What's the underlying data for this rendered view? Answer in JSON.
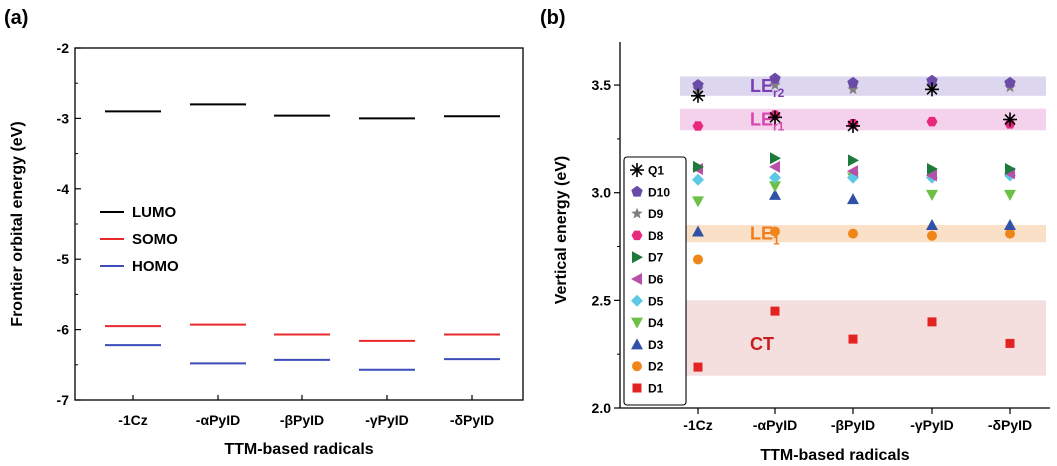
{
  "chart_data": [
    {
      "type": "line",
      "panel_label": "(a)",
      "xlabel": "TTM-based radicals",
      "ylabel": "Frontier orbital energy (eV)",
      "ylim": [
        -7,
        -2
      ],
      "y_ticks": [
        "-2",
        "-3",
        "-4",
        "-5",
        "-6",
        "-7"
      ],
      "categories": [
        "-1Cz",
        "-αPyID",
        "-βPyID",
        "-γPyID",
        "-δPyID"
      ],
      "series": [
        {
          "name": "LUMO",
          "color": "#000000",
          "values": [
            -2.9,
            -2.8,
            -2.96,
            -3.0,
            -2.97
          ]
        },
        {
          "name": "SOMO",
          "color": "#e8282b",
          "values": [
            -5.95,
            -5.93,
            -6.07,
            -6.16,
            -6.07
          ]
        },
        {
          "name": "HOMO",
          "color": "#3c4cb8",
          "values": [
            -6.22,
            -6.48,
            -6.43,
            -6.57,
            -6.42
          ]
        }
      ],
      "legend_position": "left"
    },
    {
      "type": "scatter",
      "panel_label": "(b)",
      "xlabel": "TTM-based radicals",
      "ylabel": "Vertical energy (eV)",
      "ylim": [
        2.0,
        3.7
      ],
      "y_ticks": [
        "2.0",
        "2.5",
        "3.0",
        "3.5"
      ],
      "categories": [
        "-1Cz",
        "-αPyID",
        "-βPyID",
        "-γPyID",
        "-δPyID"
      ],
      "bands": [
        {
          "label": "LE",
          "sub": "r2",
          "range": [
            3.45,
            3.54
          ],
          "fill": "#dcd6ee",
          "text_color": "#7b3fb3"
        },
        {
          "label": "LE",
          "sub": "r1",
          "range": [
            3.29,
            3.39
          ],
          "fill": "#f5d2ec",
          "text_color": "#d846b0"
        },
        {
          "label": "LE",
          "sub": "1",
          "range": [
            2.77,
            2.85
          ],
          "fill": "#fbe0c8",
          "text_color": "#f07c1a"
        },
        {
          "label": "CT",
          "sub": "",
          "range": [
            2.15,
            2.5
          ],
          "fill": "#f4dede",
          "text_color": "#c8201f"
        }
      ],
      "series": [
        {
          "name": "Q1",
          "marker": "asterisk",
          "color": "#000000",
          "values": [
            3.45,
            3.35,
            3.31,
            3.48,
            3.34
          ]
        },
        {
          "name": "D10",
          "marker": "pentagon",
          "color": "#6a4ca8",
          "values": [
            3.5,
            3.53,
            3.51,
            3.52,
            3.51
          ]
        },
        {
          "name": "D9",
          "marker": "star",
          "color": "#7f7f7f",
          "values": [
            3.48,
            3.5,
            3.48,
            3.5,
            3.49
          ]
        },
        {
          "name": "D8",
          "marker": "hexagon",
          "color": "#e8287c",
          "values": [
            3.31,
            3.36,
            3.32,
            3.33,
            3.32
          ]
        },
        {
          "name": "D7",
          "marker": "triangle-right",
          "color": "#1d7a3a",
          "values": [
            3.12,
            3.16,
            3.15,
            3.11,
            3.11
          ]
        },
        {
          "name": "D6",
          "marker": "triangle-left",
          "color": "#b84fa8",
          "values": [
            3.11,
            3.12,
            3.1,
            3.08,
            3.09
          ]
        },
        {
          "name": "D5",
          "marker": "diamond",
          "color": "#5bc8e4",
          "values": [
            3.06,
            3.07,
            3.07,
            3.07,
            3.08
          ]
        },
        {
          "name": "D4",
          "marker": "triangle-down",
          "color": "#6cc045",
          "values": [
            2.96,
            3.03,
            3.07,
            2.99,
            2.99
          ]
        },
        {
          "name": "D3",
          "marker": "triangle-up",
          "color": "#2f52a8",
          "values": [
            2.82,
            2.99,
            2.97,
            2.85,
            2.85
          ]
        },
        {
          "name": "D2",
          "marker": "circle",
          "color": "#f0861a",
          "values": [
            2.69,
            2.82,
            2.81,
            2.8,
            2.81
          ]
        },
        {
          "name": "D1",
          "marker": "square",
          "color": "#e32222",
          "values": [
            2.19,
            2.45,
            2.32,
            2.4,
            2.3
          ]
        }
      ],
      "legend_position": "left"
    }
  ]
}
